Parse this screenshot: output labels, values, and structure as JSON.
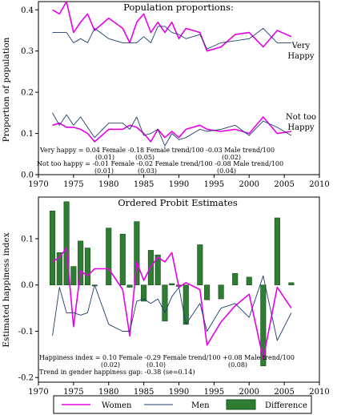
{
  "colors": {
    "women": "#e800e8",
    "men": "#1f3d6e",
    "difference_fill": "#2e7d32",
    "difference_stroke": "#1b4d1e"
  },
  "legend": {
    "women": "Women",
    "men": "Men",
    "difference": "Difference"
  },
  "chart_data": [
    {
      "type": "line",
      "title": "Population proportions:",
      "xlabel": "",
      "ylabel": "Proportion of population",
      "xlim": [
        1970,
        2010
      ],
      "ylim": [
        0,
        0.42
      ],
      "xticks": [
        "1970",
        "1975",
        "1980",
        "1985",
        "1990",
        "1995",
        "2000",
        "2005",
        "2010"
      ],
      "yticks": [
        "0.0",
        "0.1",
        "0.2",
        "0.3",
        "0.4"
      ],
      "annotations": {
        "very_happy_label": [
          "Very",
          "Happy"
        ],
        "not_too_happy_label": [
          "Not too",
          "Happy"
        ],
        "regression_line1": "Very happy = 0.04 Female -0.18 Female trend/100 -0.03 Male trend/100",
        "regression_line1_se": [
          "(0.01)",
          "(0.05)",
          "(0.02)"
        ],
        "regression_line2": "Not too happy = -0.01 Female -0.02 Female trend/100 -0.08 Male trend/100",
        "regression_line2_se": [
          "(0.01)",
          "(0.03)",
          "(0.04)"
        ]
      },
      "x": [
        1972,
        1973,
        1974,
        1975,
        1976,
        1977,
        1978,
        1980,
        1982,
        1983,
        1984,
        1985,
        1986,
        1987,
        1988,
        1989,
        1990,
        1991,
        1993,
        1994,
        1996,
        1998,
        2000,
        2002,
        2004,
        2006
      ],
      "series": [
        {
          "name": "Very Happy - Women",
          "key": "women",
          "values": [
            0.4,
            0.39,
            0.42,
            0.345,
            0.37,
            0.39,
            0.35,
            0.38,
            0.355,
            0.32,
            0.37,
            0.39,
            0.345,
            0.37,
            0.345,
            0.37,
            0.33,
            0.355,
            0.345,
            0.3,
            0.31,
            0.34,
            0.345,
            0.31,
            0.35,
            0.335
          ]
        },
        {
          "name": "Very Happy - Men",
          "key": "men",
          "values": [
            0.345,
            0.345,
            0.345,
            0.32,
            0.33,
            0.32,
            0.355,
            0.33,
            0.32,
            0.32,
            0.32,
            0.335,
            0.32,
            0.36,
            0.36,
            0.345,
            0.34,
            0.33,
            0.34,
            0.305,
            0.32,
            0.325,
            0.33,
            0.355,
            0.32,
            0.32
          ]
        },
        {
          "name": "Not too Happy - Women",
          "key": "women",
          "values": [
            0.12,
            0.125,
            0.115,
            0.115,
            0.11,
            0.1,
            0.08,
            0.11,
            0.11,
            0.12,
            0.115,
            0.1,
            0.08,
            0.11,
            0.09,
            0.105,
            0.09,
            0.11,
            0.12,
            0.11,
            0.105,
            0.11,
            0.1,
            0.14,
            0.1,
            0.105
          ]
        },
        {
          "name": "Not too Happy - Men",
          "key": "men",
          "values": [
            0.15,
            0.12,
            0.145,
            0.12,
            0.14,
            0.115,
            0.09,
            0.125,
            0.125,
            0.11,
            0.14,
            0.095,
            0.1,
            0.11,
            0.07,
            0.1,
            0.085,
            0.09,
            0.11,
            0.105,
            0.11,
            0.12,
            0.095,
            0.13,
            0.115,
            0.095
          ]
        }
      ]
    },
    {
      "type": "bar",
      "title": "Ordered Probit Estimates",
      "xlabel": "",
      "ylabel": "Estimated happiness index",
      "xlim": [
        1970,
        2010
      ],
      "ylim": [
        -0.21,
        0.19
      ],
      "xticks": [
        "1970",
        "1975",
        "1980",
        "1985",
        "1990",
        "1995",
        "2000",
        "2005",
        "2010"
      ],
      "yticks": [
        "-0.2",
        "-0.1",
        "0.0",
        "0.1"
      ],
      "annotations": {
        "regression_line": "Happiness index = 0.10 Female -0.29 Female trend/100 +0.08 Male trend/100",
        "regression_se": [
          "(0.02)",
          "(0.10)",
          "(0.08)"
        ],
        "trend_line": "Trend in gender happiness gap: -0.38  (se=0.14)"
      },
      "x": [
        1972,
        1973,
        1974,
        1975,
        1976,
        1977,
        1978,
        1980,
        1982,
        1983,
        1984,
        1985,
        1986,
        1987,
        1988,
        1989,
        1990,
        1991,
        1993,
        1994,
        1996,
        1998,
        2000,
        2002,
        2004,
        2006
      ],
      "series": [
        {
          "name": "Women",
          "key": "women",
          "values": [
            0.05,
            0.06,
            0.08,
            -0.09,
            0.03,
            0.02,
            0.035,
            0.035,
            -0.01,
            -0.11,
            0.05,
            0.01,
            0.04,
            0.06,
            0.05,
            0.07,
            -0.005,
            0.005,
            -0.01,
            -0.13,
            -0.08,
            -0.045,
            -0.02,
            -0.16,
            -0.005,
            -0.05
          ]
        },
        {
          "name": "Men",
          "key": "men",
          "values": [
            -0.11,
            -0.005,
            -0.06,
            -0.06,
            -0.065,
            -0.06,
            0.0,
            -0.085,
            -0.1,
            -0.1,
            -0.035,
            -0.03,
            -0.04,
            -0.03,
            -0.06,
            -0.025,
            -0.005,
            -0.085,
            -0.04,
            -0.1,
            -0.05,
            -0.04,
            -0.07,
            0.02,
            -0.12,
            -0.06
          ]
        },
        {
          "name": "Difference",
          "key": "difference",
          "values": [
            0.16,
            0.07,
            0.18,
            0.04,
            0.095,
            0.08,
            0.0,
            0.123,
            0.11,
            -0.005,
            0.137,
            -0.035,
            0.075,
            0.065,
            -0.078,
            0.003,
            -0.003,
            -0.085,
            0.087,
            -0.032,
            -0.03,
            0.025,
            0.017,
            -0.175,
            0.145,
            0.005
          ]
        }
      ]
    }
  ]
}
